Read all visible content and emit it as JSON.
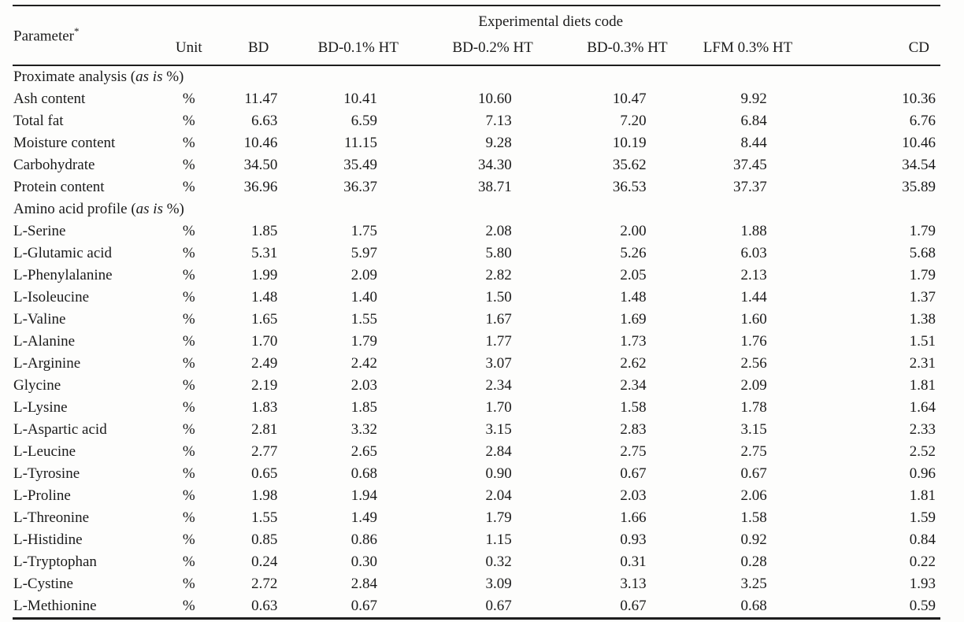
{
  "table": {
    "param_header": "Parameter",
    "param_note": "*",
    "spanning_header": "Experimental diets code",
    "columns": [
      "Unit",
      "BD",
      "BD-0.1% HT",
      "BD-0.2% HT",
      "BD-0.3% HT",
      "LFM 0.3% HT",
      "CD"
    ],
    "sections": [
      {
        "title": {
          "pre": "Proximate analysis (",
          "italic": "as is",
          "post": " %)"
        },
        "rows": [
          {
            "parameter": "Ash content",
            "unit": "%",
            "values": [
              "11.47",
              "10.41",
              "10.60",
              "10.47",
              "9.92",
              "10.36"
            ]
          },
          {
            "parameter": "Total fat",
            "unit": "%",
            "values": [
              "6.63",
              "6.59",
              "7.13",
              "7.20",
              "6.84",
              "6.76"
            ]
          },
          {
            "parameter": "Moisture content",
            "unit": "%",
            "values": [
              "10.46",
              "11.15",
              "9.28",
              "10.19",
              "8.44",
              "10.46"
            ]
          },
          {
            "parameter": "Carbohydrate",
            "unit": "%",
            "values": [
              "34.50",
              "35.49",
              "34.30",
              "35.62",
              "37.45",
              "34.54"
            ]
          },
          {
            "parameter": "Protein content",
            "unit": "%",
            "values": [
              "36.96",
              "36.37",
              "38.71",
              "36.53",
              "37.37",
              "35.89"
            ]
          }
        ]
      },
      {
        "title": {
          "pre": "Amino acid profile (",
          "italic": "as is",
          "post": " %)"
        },
        "rows": [
          {
            "parameter": "L-Serine",
            "unit": "%",
            "values": [
              "1.85",
              "1.75",
              "2.08",
              "2.00",
              "1.88",
              "1.79"
            ]
          },
          {
            "parameter": "L-Glutamic acid",
            "unit": "%",
            "values": [
              "5.31",
              "5.97",
              "5.80",
              "5.26",
              "6.03",
              "5.68"
            ]
          },
          {
            "parameter": "L-Phenylalanine",
            "unit": "%",
            "values": [
              "1.99",
              "2.09",
              "2.82",
              "2.05",
              "2.13",
              "1.79"
            ]
          },
          {
            "parameter": "L-Isoleucine",
            "unit": "%",
            "values": [
              "1.48",
              "1.40",
              "1.50",
              "1.48",
              "1.44",
              "1.37"
            ]
          },
          {
            "parameter": "L-Valine",
            "unit": "%",
            "values": [
              "1.65",
              "1.55",
              "1.67",
              "1.69",
              "1.60",
              "1.38"
            ]
          },
          {
            "parameter": "L-Alanine",
            "unit": "%",
            "values": [
              "1.70",
              "1.79",
              "1.77",
              "1.73",
              "1.76",
              "1.51"
            ]
          },
          {
            "parameter": "L-Arginine",
            "unit": "%",
            "values": [
              "2.49",
              "2.42",
              "3.07",
              "2.62",
              "2.56",
              "2.31"
            ]
          },
          {
            "parameter": "Glycine",
            "unit": "%",
            "values": [
              "2.19",
              "2.03",
              "2.34",
              "2.34",
              "2.09",
              "1.81"
            ]
          },
          {
            "parameter": "L-Lysine",
            "unit": "%",
            "values": [
              "1.83",
              "1.85",
              "1.70",
              "1.58",
              "1.78",
              "1.64"
            ]
          },
          {
            "parameter": "L-Aspartic acid",
            "unit": "%",
            "values": [
              "2.81",
              "3.32",
              "3.15",
              "2.83",
              "3.15",
              "2.33"
            ]
          },
          {
            "parameter": "L-Leucine",
            "unit": "%",
            "values": [
              "2.77",
              "2.65",
              "2.84",
              "2.75",
              "2.75",
              "2.52"
            ]
          },
          {
            "parameter": "L-Tyrosine",
            "unit": "%",
            "values": [
              "0.65",
              "0.68",
              "0.90",
              "0.67",
              "0.67",
              "0.96"
            ]
          },
          {
            "parameter": "L-Proline",
            "unit": "%",
            "values": [
              "1.98",
              "1.94",
              "2.04",
              "2.03",
              "2.06",
              "1.81"
            ]
          },
          {
            "parameter": "L-Threonine",
            "unit": "%",
            "values": [
              "1.55",
              "1.49",
              "1.79",
              "1.66",
              "1.58",
              "1.59"
            ]
          },
          {
            "parameter": "L-Histidine",
            "unit": "%",
            "values": [
              "0.85",
              "0.86",
              "1.15",
              "0.93",
              "0.92",
              "0.84"
            ]
          },
          {
            "parameter": "L-Tryptophan",
            "unit": "%",
            "values": [
              "0.24",
              "0.30",
              "0.32",
              "0.31",
              "0.28",
              "0.22"
            ]
          },
          {
            "parameter": "L-Cystine",
            "unit": "%",
            "values": [
              "2.72",
              "2.84",
              "3.09",
              "3.13",
              "3.25",
              "1.93"
            ]
          },
          {
            "parameter": "L-Methionine",
            "unit": "%",
            "values": [
              "0.63",
              "0.67",
              "0.67",
              "0.67",
              "0.68",
              "0.59"
            ]
          }
        ]
      }
    ]
  }
}
